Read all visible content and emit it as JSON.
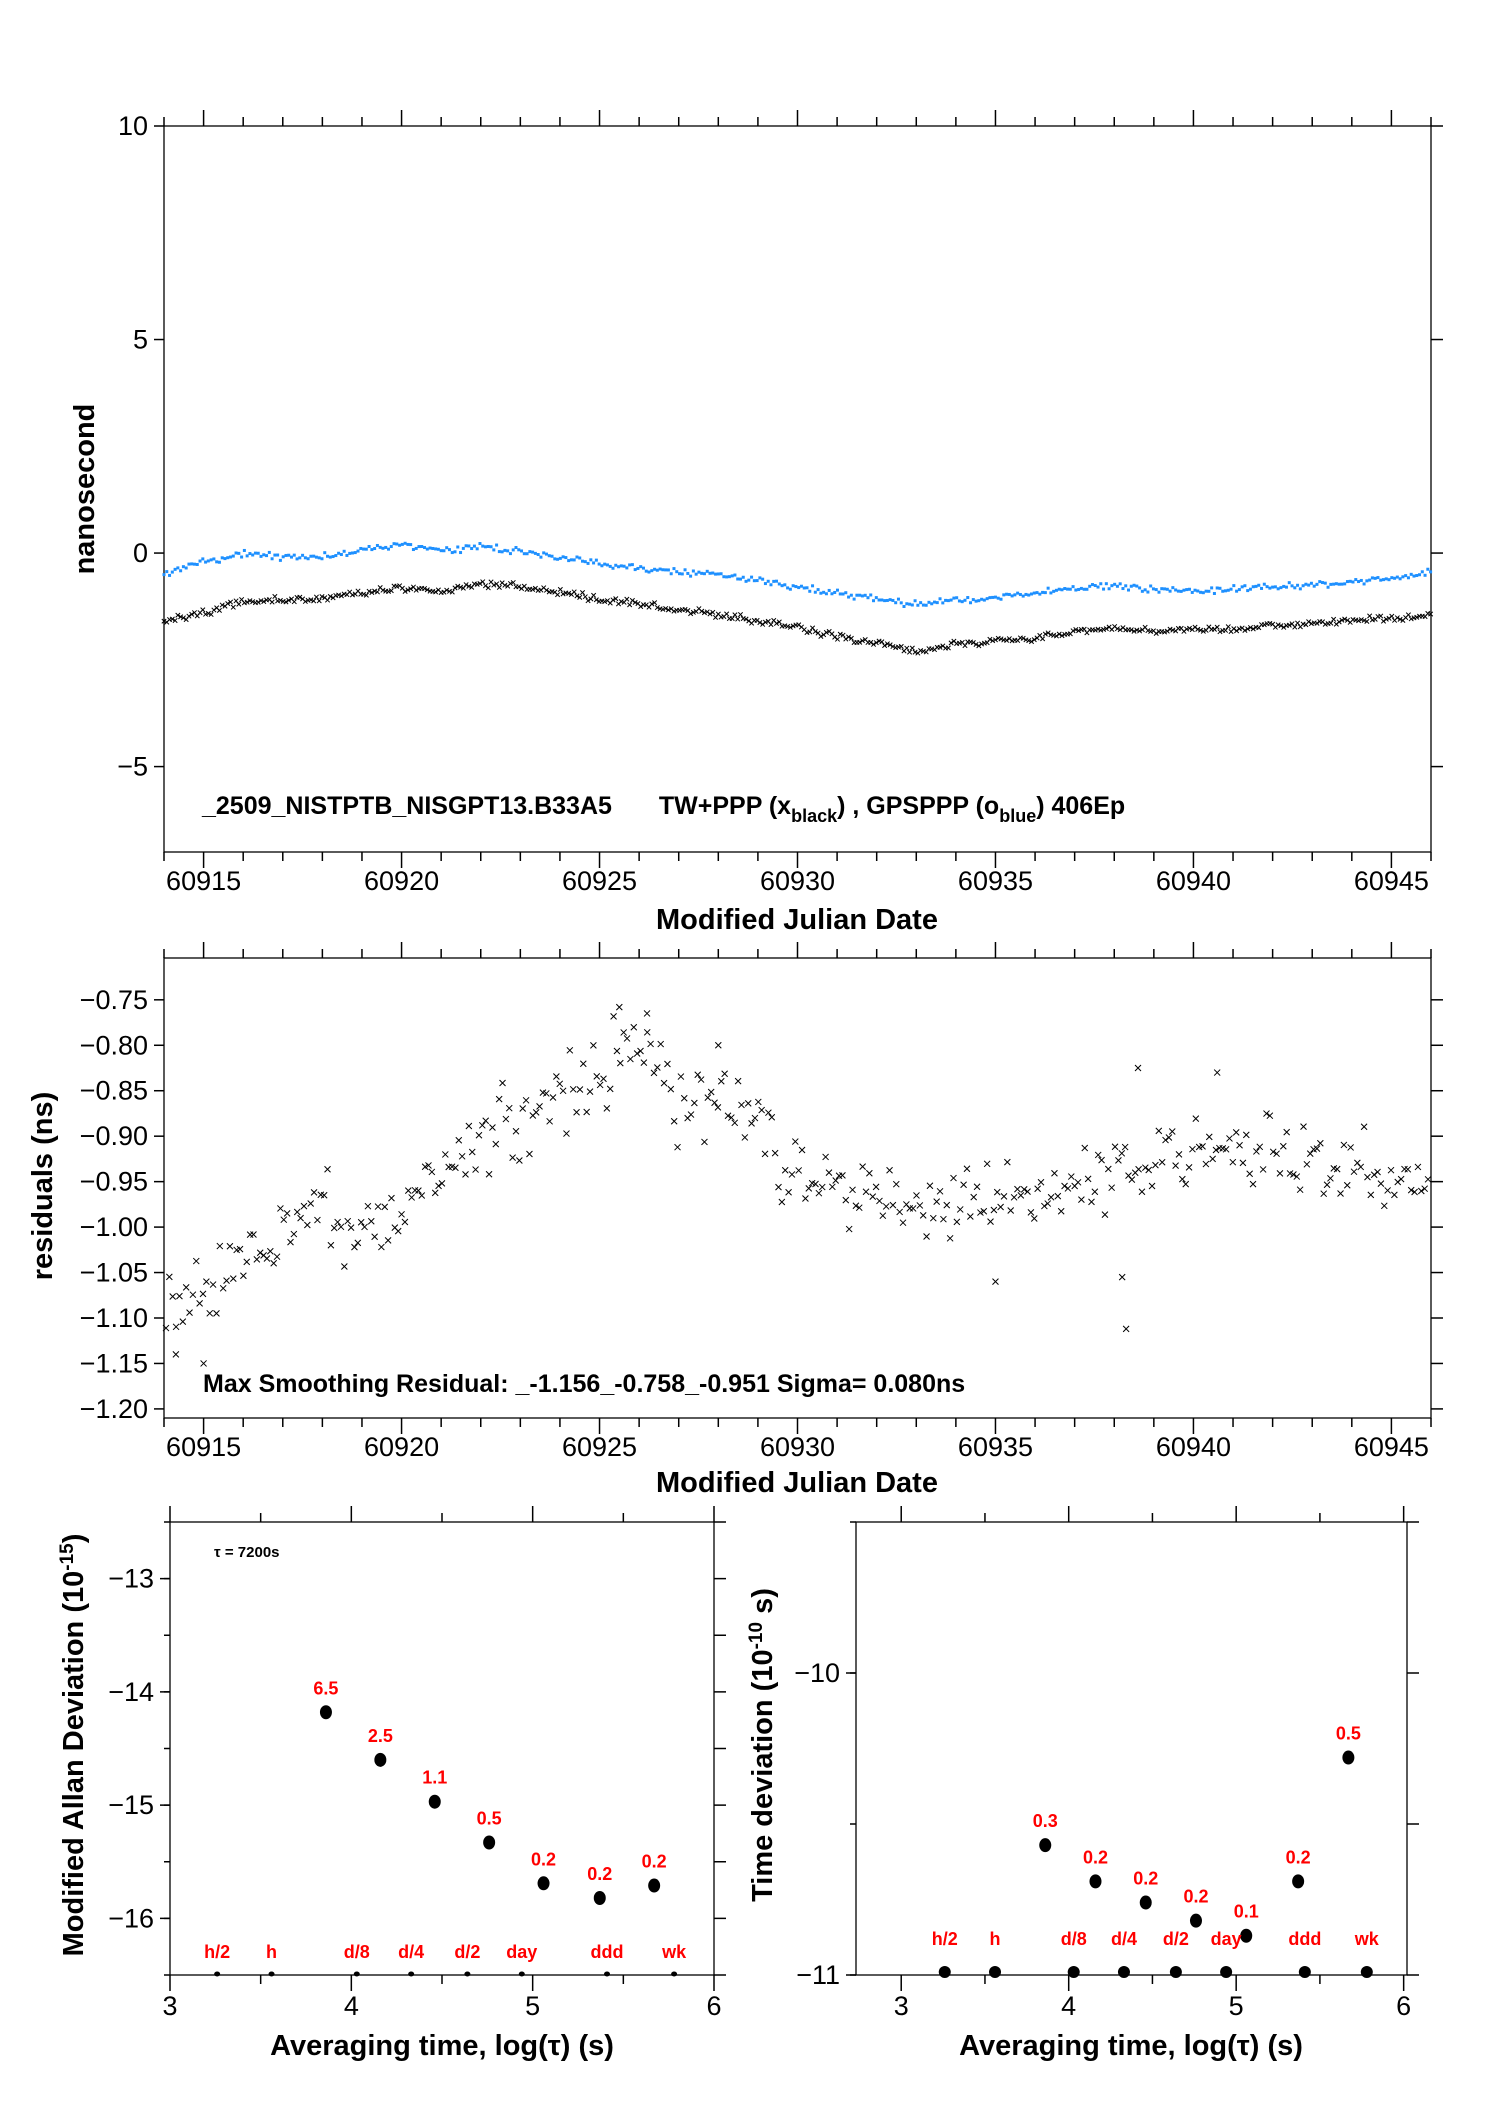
{
  "chart_data": [
    {
      "type": "scatter",
      "id": "phase",
      "title_parts": [
        "_2509_NISTPTB_NISGPT13.B33A5",
        "TW+PPP (x",
        "black",
        ") ,  GPSPPP (o",
        "blue",
        ")  406Ep"
      ],
      "xlabel": "Modified Julian Date",
      "ylabel": "nanosecond",
      "xlim": [
        60914,
        60946
      ],
      "ylim": [
        -7,
        10
      ],
      "xticks": [
        60915,
        60920,
        60925,
        60930,
        60935,
        60940,
        60945
      ],
      "yticks": [
        10,
        5,
        0,
        -5
      ],
      "series": [
        {
          "name": "TW+PPP",
          "marker": "x",
          "color": "#000000",
          "x": [
            60914,
            60915,
            60916,
            60917,
            60918,
            60919,
            60920,
            60921,
            60922,
            60923,
            60924,
            60925,
            60926,
            60927,
            60928,
            60929,
            60930,
            60931,
            60932,
            60933,
            60934,
            60935,
            60936,
            60937,
            60938,
            60939,
            60940,
            60941,
            60942,
            60943,
            60944,
            60945,
            60946
          ],
          "y": [
            -1.6,
            -1.4,
            -1.15,
            -1.1,
            -1.05,
            -0.95,
            -0.8,
            -0.9,
            -0.72,
            -0.8,
            -0.9,
            -1.1,
            -1.2,
            -1.35,
            -1.45,
            -1.6,
            -1.75,
            -1.95,
            -2.1,
            -2.3,
            -2.15,
            -2.05,
            -2.0,
            -1.85,
            -1.75,
            -1.85,
            -1.8,
            -1.8,
            -1.7,
            -1.65,
            -1.6,
            -1.55,
            -1.45
          ]
        },
        {
          "name": "GPSPPP",
          "marker": "o",
          "color": "#1e90ff",
          "x": [
            60914,
            60915,
            60916,
            60917,
            60918,
            60919,
            60920,
            60921,
            60922,
            60923,
            60924,
            60925,
            60926,
            60927,
            60928,
            60929,
            60930,
            60931,
            60932,
            60933,
            60934,
            60935,
            60936,
            60937,
            60938,
            60939,
            60940,
            60941,
            60942,
            60943,
            60944,
            60945,
            60946
          ],
          "y": [
            -0.45,
            -0.2,
            0.0,
            -0.1,
            -0.1,
            0.05,
            0.2,
            0.05,
            0.15,
            0.05,
            -0.1,
            -0.25,
            -0.35,
            -0.45,
            -0.5,
            -0.65,
            -0.8,
            -0.95,
            -1.05,
            -1.2,
            -1.1,
            -1.05,
            -0.95,
            -0.85,
            -0.75,
            -0.85,
            -0.9,
            -0.85,
            -0.8,
            -0.75,
            -0.7,
            -0.6,
            -0.45
          ]
        }
      ]
    },
    {
      "type": "scatter",
      "id": "residuals",
      "annotation": "Max Smoothing Residual: _-1.156_-0.758_-0.951  Sigma= 0.080ns",
      "xlabel": "Modified Julian Date",
      "ylabel": "residuals (ns)",
      "xlim": [
        60914,
        60946
      ],
      "ylim": [
        -1.21,
        -0.704
      ],
      "xticks": [
        60915,
        60920,
        60925,
        60930,
        60935,
        60940,
        60945
      ],
      "yticks": [
        -0.75,
        -0.8,
        -0.85,
        -0.9,
        -0.95,
        -1.0,
        -1.05,
        -1.1,
        -1.15,
        -1.2
      ],
      "ytick_labels": [
        "−0.75",
        "−0.80",
        "−0.85",
        "−0.90",
        "−0.95",
        "−1.00",
        "−1.05",
        "−1.10",
        "−1.15",
        "−1.20"
      ],
      "trend_x": [
        60914,
        60915,
        60916,
        60917,
        60918,
        60918.5,
        60919,
        60920,
        60921,
        60922,
        60923,
        60924,
        60925,
        60925.8,
        60926.5,
        60927,
        60928,
        60929,
        60929.5,
        60930,
        60931,
        60932,
        60933,
        60934,
        60935,
        60936,
        60937,
        60938,
        60939,
        60940,
        60941,
        60942,
        60943,
        60944,
        60945,
        60946
      ],
      "trend_y": [
        -1.09,
        -1.08,
        -1.04,
        -1.01,
        -0.96,
        -1.02,
        -1.01,
        -0.99,
        -0.93,
        -0.9,
        -0.88,
        -0.85,
        -0.83,
        -0.8,
        -0.82,
        -0.87,
        -0.87,
        -0.87,
        -0.94,
        -0.95,
        -0.96,
        -0.98,
        -0.97,
        -0.98,
        -0.96,
        -0.97,
        -0.95,
        -0.93,
        -0.93,
        -0.92,
        -0.93,
        -0.92,
        -0.94,
        -0.93,
        -0.95,
        -0.97
      ],
      "scatter_sd": 0.02,
      "outliers": [
        [
          60914.3,
          -1.14
        ],
        [
          60915,
          -1.15
        ],
        [
          60925.5,
          -0.758
        ],
        [
          60926.2,
          -0.765
        ],
        [
          60928,
          -0.8
        ],
        [
          60935,
          -1.06
        ],
        [
          60938.2,
          -1.055
        ],
        [
          60938.3,
          -1.112
        ],
        [
          60938.6,
          -0.825
        ],
        [
          60940.6,
          -0.83
        ]
      ]
    },
    {
      "type": "scatter",
      "id": "mdev",
      "annotation": "τ = 7200s",
      "xlabel": "Averaging time, log(τ) (s)",
      "ylabel_parts": [
        "Modified Allan Deviation (10",
        "-15",
        ")"
      ],
      "xlim": [
        3,
        6
      ],
      "ylim": [
        -16.5,
        -12.5
      ],
      "xticks": [
        3,
        4,
        5,
        6
      ],
      "yticks": [
        -13,
        -14,
        -15,
        -16
      ],
      "ytick_labels": [
        "−13",
        "−14",
        "−15",
        "−16"
      ],
      "points": {
        "x": [
          3.86,
          4.16,
          4.46,
          4.76,
          5.06,
          5.37,
          5.67
        ],
        "y": [
          -14.18,
          -14.6,
          -14.97,
          -15.33,
          -15.69,
          -15.82,
          -15.71
        ],
        "labels": [
          "6.5",
          "2.5",
          "1.1",
          "0.5",
          "0.2",
          "0.2",
          "0.2"
        ]
      },
      "markers": {
        "x": [
          3.26,
          3.56,
          4.03,
          4.33,
          4.64,
          4.94,
          5.41,
          5.78
        ],
        "labels": [
          "h/2",
          "h",
          "d/8",
          "d/4",
          "d/2",
          "day",
          "ddd",
          "wk"
        ]
      }
    },
    {
      "type": "scatter",
      "id": "tdev",
      "xlabel": "Averaging time, log(τ) (s)",
      "ylabel_parts": [
        "Time deviation (10",
        "-10",
        " s)"
      ],
      "xlim": [
        2.73,
        6.02
      ],
      "ylim": [
        -11,
        -9.5
      ],
      "xticks": [
        3,
        4,
        5,
        6
      ],
      "yticks": [
        -10,
        -11
      ],
      "ytick_labels": [
        "−10",
        "−11"
      ],
      "points": {
        "x": [
          3.86,
          4.16,
          4.46,
          4.76,
          5.06,
          5.37,
          5.67
        ],
        "y": [
          -10.57,
          -10.69,
          -10.76,
          -10.82,
          -10.87,
          -10.69,
          -10.28
        ],
        "labels": [
          "0.3",
          "0.2",
          "0.2",
          "0.2",
          "0.1",
          "0.2",
          "0.5"
        ]
      },
      "markers": {
        "x": [
          3.26,
          3.56,
          4.03,
          4.33,
          4.64,
          4.94,
          5.41,
          5.78
        ],
        "labels": [
          "h/2",
          "h",
          "d/8",
          "d/4",
          "d/2",
          "day",
          "ddd",
          "wk"
        ]
      }
    }
  ]
}
